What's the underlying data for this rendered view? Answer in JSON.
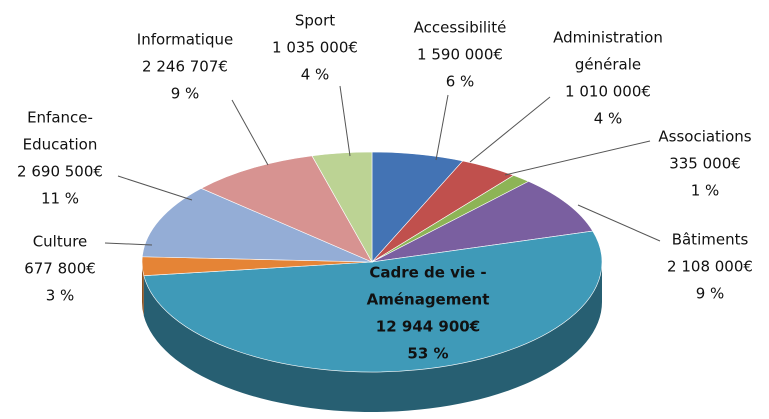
{
  "chart_data": {
    "type": "pie3d",
    "categories": [
      [
        "Accessibilité"
      ],
      [
        "Administration",
        "générale"
      ],
      [
        "Associations"
      ],
      [
        "Bâtiments"
      ],
      [
        "Cadre de vie -",
        "Aménagement"
      ],
      [
        "Culture"
      ],
      [
        "Enfance-",
        "Education"
      ],
      [
        "Informatique"
      ],
      [
        "Sport"
      ]
    ],
    "values": [
      1590000,
      1010000,
      335000,
      2108000,
      12944900,
      677800,
      2690500,
      2246707,
      1035000
    ],
    "value_labels": [
      "1 590 000€",
      "1 010 000€",
      "335 000€",
      "2 108 000€",
      "12 944 900€",
      "677 800€",
      "2 690 500€",
      "2 246 707€",
      "1 035 000€"
    ],
    "percents": [
      6,
      4,
      1,
      9,
      53,
      3,
      11,
      9,
      4
    ],
    "percent_labels": [
      "6 %",
      "4 %",
      "1 %",
      "9 %",
      "53 %",
      "3 %",
      "11 %",
      "9 %",
      "4 %"
    ],
    "colors": [
      "#4373b4",
      "#c0504d",
      "#8db456",
      "#7a5fa0",
      "#3f9ab8",
      "#e58436",
      "#94add6",
      "#d79391",
      "#bcd394"
    ]
  }
}
